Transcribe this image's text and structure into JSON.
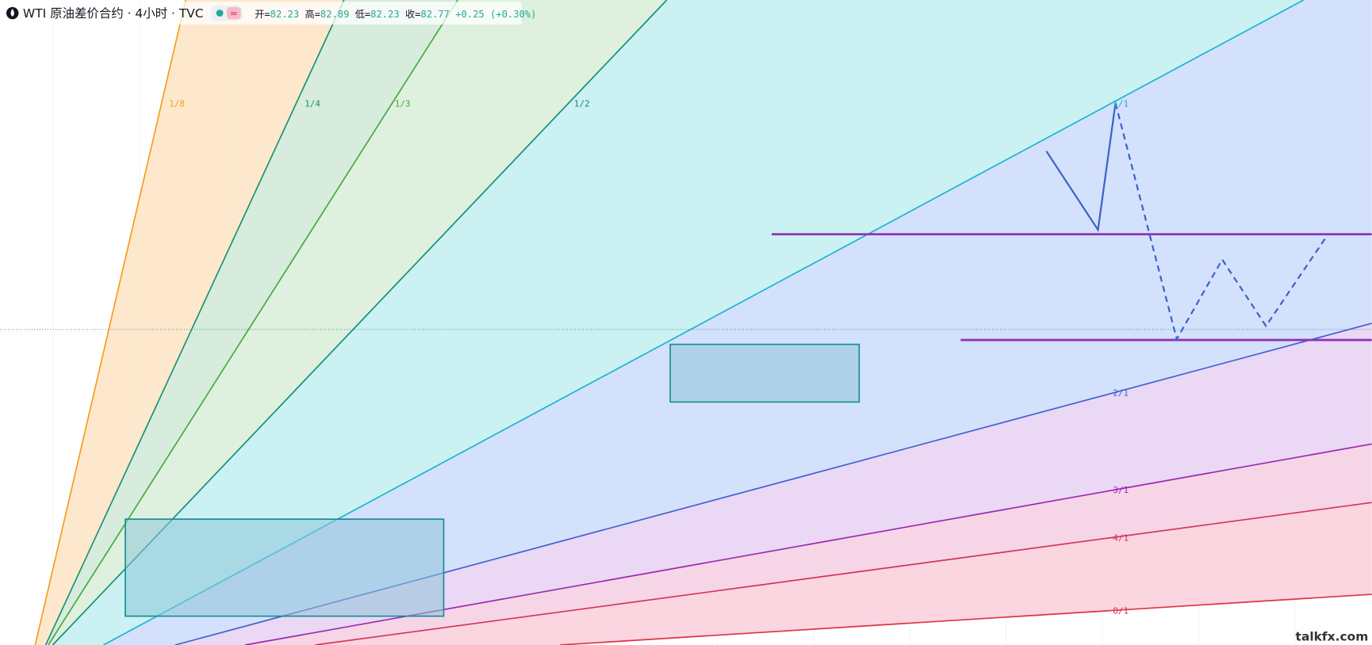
{
  "header": {
    "symbol": "WTI 原油差价合约 · 4小时 · TVC",
    "badge": "≈",
    "ohlc": [
      {
        "key": "开=",
        "value": "82.23"
      },
      {
        "key": "高=",
        "value": "82.89"
      },
      {
        "key": "低=",
        "value": "82.23"
      },
      {
        "key": "收=",
        "value": "82.77"
      }
    ],
    "change": "+0.25 (+0.30%)"
  },
  "fan_labels": [
    "1/8",
    "1/4",
    "1/3",
    "1/2",
    "1/1",
    "2/1",
    "3/1",
    "4/1",
    "8/1"
  ],
  "watermark": "talkfx.com"
}
